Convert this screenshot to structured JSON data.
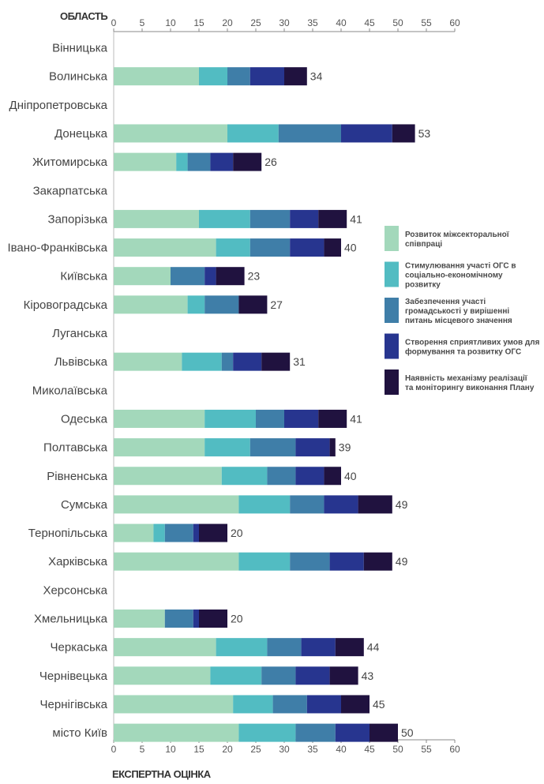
{
  "chart_data": {
    "type": "bar",
    "orientation": "horizontal",
    "stacked": true,
    "ylabel": "ОБЛАСТЬ",
    "xlabel": "ЕКСПЕРТНА ОЦІНКА",
    "xlim": [
      0,
      60
    ],
    "xticks": [
      0,
      5,
      10,
      15,
      20,
      25,
      30,
      35,
      40,
      45,
      50,
      55,
      60
    ],
    "grid": false,
    "legend_position": "right",
    "categories": [
      "Вінницька",
      "Волинська",
      "Дніпропетровська",
      "Донецька",
      "Житомирська",
      "Закарпатська",
      "Запорізька",
      "Івано-Франківська",
      "Київська",
      "Кіровоградська",
      "Луганська",
      "Львівська",
      "Миколаївська",
      "Одеська",
      "Полтавська",
      "Рівненська",
      "Сумська",
      "Тернопільська",
      "Харківська",
      "Херсонська",
      "Хмельницька",
      "Черкаська",
      "Чернівецька",
      "Чернігівська",
      "місто Київ"
    ],
    "series": [
      {
        "name": "Розвиток міжсекторальної співпраці",
        "color": "#a3d8bb",
        "values": [
          0,
          15,
          0,
          20,
          11,
          0,
          15,
          18,
          10,
          13,
          0,
          12,
          0,
          16,
          16,
          19,
          22,
          7,
          22,
          0,
          9,
          18,
          17,
          21,
          22
        ]
      },
      {
        "name": "Стимулювання участі ОГС в соціально-економічному розвитку",
        "color": "#52bcc2",
        "values": [
          0,
          5,
          0,
          9,
          2,
          0,
          9,
          6,
          0,
          3,
          0,
          7,
          0,
          9,
          8,
          8,
          9,
          2,
          9,
          0,
          0,
          9,
          9,
          7,
          10
        ]
      },
      {
        "name": "Забезпечення участі громадськості у вирішенні питань місцевого значення",
        "color": "#3f7ea8",
        "values": [
          0,
          4,
          0,
          11,
          4,
          0,
          7,
          7,
          6,
          6,
          0,
          2,
          0,
          5,
          8,
          5,
          6,
          5,
          7,
          0,
          5,
          6,
          6,
          6,
          7
        ]
      },
      {
        "name": "Створення сприятливих умов для формування та розвитку ОГС",
        "color": "#27358f",
        "values": [
          0,
          6,
          0,
          9,
          4,
          0,
          5,
          6,
          2,
          0,
          0,
          5,
          0,
          6,
          6,
          5,
          6,
          1,
          6,
          0,
          1,
          6,
          6,
          6,
          6
        ]
      },
      {
        "name": "Наявність механізму реалізації та моніторингу виконання Плану",
        "color": "#20123f",
        "values": [
          0,
          4,
          0,
          4,
          5,
          0,
          5,
          3,
          5,
          5,
          0,
          5,
          0,
          5,
          1,
          3,
          6,
          5,
          5,
          0,
          5,
          5,
          5,
          5,
          5
        ]
      }
    ],
    "totals": [
      null,
      34,
      null,
      53,
      26,
      null,
      41,
      40,
      23,
      27,
      null,
      31,
      null,
      41,
      39,
      40,
      49,
      20,
      49,
      null,
      20,
      44,
      43,
      45,
      50
    ]
  }
}
